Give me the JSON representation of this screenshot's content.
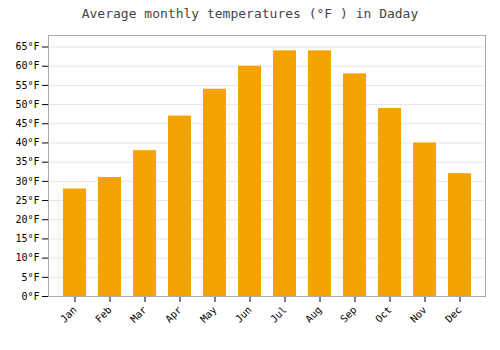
{
  "chart_data": {
    "type": "bar",
    "title": "Average monthly temperatures (°F ) in Daday",
    "categories": [
      "Jan",
      "Feb",
      "Mar",
      "Apr",
      "May",
      "Jun",
      "Jul",
      "Aug",
      "Sep",
      "Oct",
      "Nov",
      "Dec"
    ],
    "values": [
      28,
      31,
      38,
      47,
      54,
      60,
      64,
      64,
      58,
      49,
      40,
      32
    ],
    "color": "#F5A300",
    "ylim": [
      0,
      68
    ],
    "yticks": [
      {
        "value": 0,
        "label": "0°F"
      },
      {
        "value": 5,
        "label": "5°F"
      },
      {
        "value": 10,
        "label": "10°F"
      },
      {
        "value": 15,
        "label": "15°F"
      },
      {
        "value": 20,
        "label": "20°F"
      },
      {
        "value": 25,
        "label": "25°F"
      },
      {
        "value": 30,
        "label": "30°F"
      },
      {
        "value": 35,
        "label": "35°F"
      },
      {
        "value": 40,
        "label": "40°F"
      },
      {
        "value": 45,
        "label": "45°F"
      },
      {
        "value": 50,
        "label": "50°F"
      },
      {
        "value": 55,
        "label": "55°F"
      },
      {
        "value": 60,
        "label": "60°F"
      },
      {
        "value": 65,
        "label": "65°F"
      }
    ],
    "grid": true
  }
}
